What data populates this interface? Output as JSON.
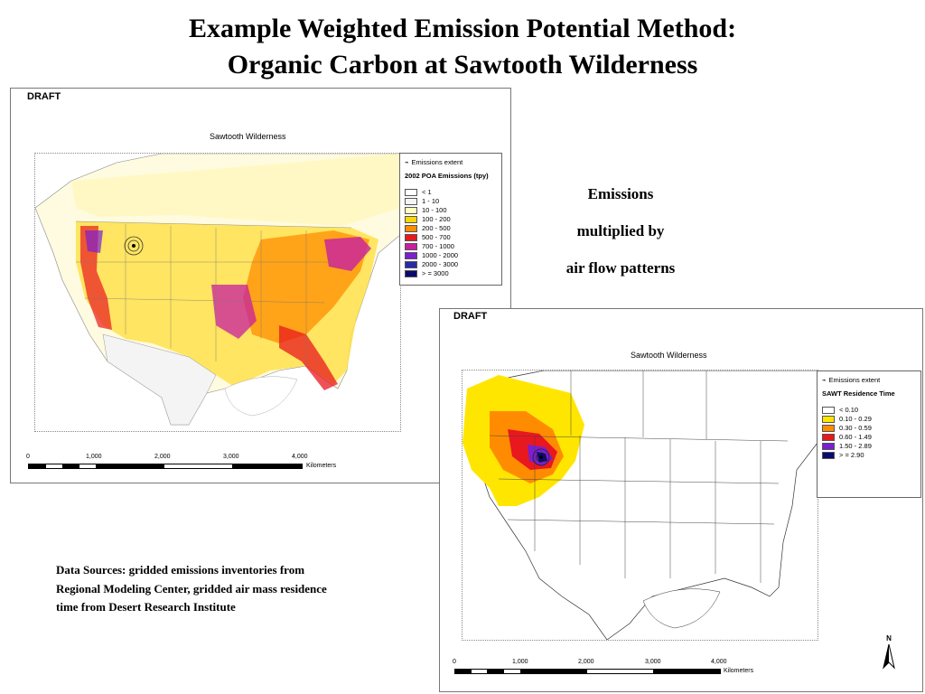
{
  "title": {
    "line1": "Example Weighted Emission Potential Method:",
    "line2": "Organic Carbon at Sawtooth Wilderness"
  },
  "annotation": {
    "line1": "Emissions",
    "line2": "multiplied by",
    "line3": "air flow patterns"
  },
  "sources": "Data Sources: gridded emissions inventories from Regional Modeling Center, gridded air mass residence time from Desert Research Institute",
  "map1": {
    "draft": "DRAFT",
    "title": "Sawtooth Wilderness",
    "legend": {
      "extent_label": "Emissions extent",
      "header": "2002 POA Emissions (tpy)",
      "classes": [
        {
          "label": "< 1",
          "color": "#ffffff"
        },
        {
          "label": "1 - 10",
          "color": "#f4f4f4"
        },
        {
          "label": "10 - 100",
          "color": "#ffffc0"
        },
        {
          "label": "100 - 200",
          "color": "#ffd700"
        },
        {
          "label": "200 - 500",
          "color": "#ff8c00"
        },
        {
          "label": "500 - 700",
          "color": "#e8181e"
        },
        {
          "label": "700 - 1000",
          "color": "#c81ea0"
        },
        {
          "label": "1000 - 2000",
          "color": "#7b1fd0"
        },
        {
          "label": "2000 - 3000",
          "color": "#2a2aa8"
        },
        {
          "label": "> = 3000",
          "color": "#0a0a6e"
        }
      ]
    },
    "scale": {
      "ticks": [
        "0",
        "1,000",
        "2,000",
        "3,000",
        "4,000"
      ],
      "unit": "Kilometers"
    }
  },
  "map2": {
    "draft": "DRAFT",
    "title": "Sawtooth Wilderness",
    "legend": {
      "extent_label": "Emissions extent",
      "header": "SAWT Residence Time",
      "classes": [
        {
          "label": "< 0.10",
          "color": "#ffffff"
        },
        {
          "label": "0.10 - 0.29",
          "color": "#ffe600"
        },
        {
          "label": "0.30 - 0.59",
          "color": "#ff8c00"
        },
        {
          "label": "0.60 - 1.49",
          "color": "#e8181e"
        },
        {
          "label": "1.50 - 2.89",
          "color": "#7b1fd0"
        },
        {
          "label": "> = 2.90",
          "color": "#0a0a6e"
        }
      ]
    },
    "scale": {
      "ticks": [
        "0",
        "1,000",
        "2,000",
        "3,000",
        "4,000"
      ],
      "unit": "Kilometers"
    },
    "north": "N"
  }
}
